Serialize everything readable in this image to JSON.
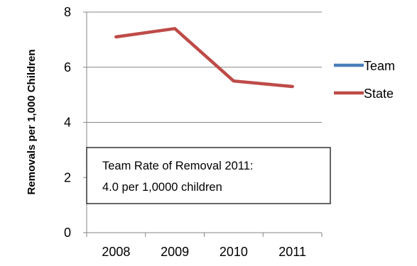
{
  "chart_data": {
    "type": "line",
    "categories": [
      "2008",
      "2009",
      "2010",
      "2011"
    ],
    "series": [
      {
        "name": "Team",
        "color": "#4a7ebb",
        "values": [
          null,
          null,
          null,
          null
        ]
      },
      {
        "name": "State",
        "color": "#be4b48",
        "values": [
          7.1,
          7.4,
          5.5,
          5.3
        ]
      }
    ],
    "ylabel": "Removals per 1,000 Children",
    "xlabel": "",
    "ylim": [
      0,
      8
    ],
    "yticks": [
      0,
      2,
      4,
      6,
      8
    ],
    "grid": true,
    "legend_position": "right",
    "annotation": {
      "line1": "Team Rate of Removal 2011:",
      "line2": "4.0 per 1,0000 children"
    }
  }
}
